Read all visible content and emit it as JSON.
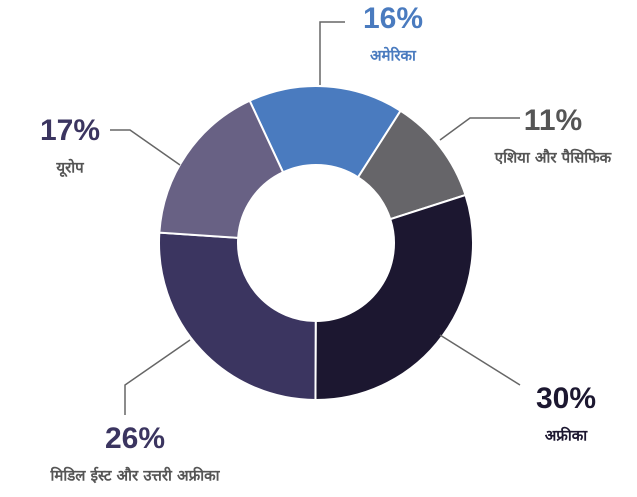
{
  "chart_data": {
    "type": "donut",
    "categories": [
      "अमेरिका",
      "एशिया और पैसिफिक",
      "अफ्रीका",
      "मिडिल ईस्ट और उत्तरी अफ्रीका",
      "यूरोप"
    ],
    "values": [
      16,
      11,
      30,
      26,
      17
    ],
    "value_labels": [
      "16%",
      "11%",
      "30%",
      "26%",
      "17%"
    ],
    "colors": [
      "#4a7bbf",
      "#666569",
      "#1c1730",
      "#3b3560",
      "#686184"
    ]
  }
}
